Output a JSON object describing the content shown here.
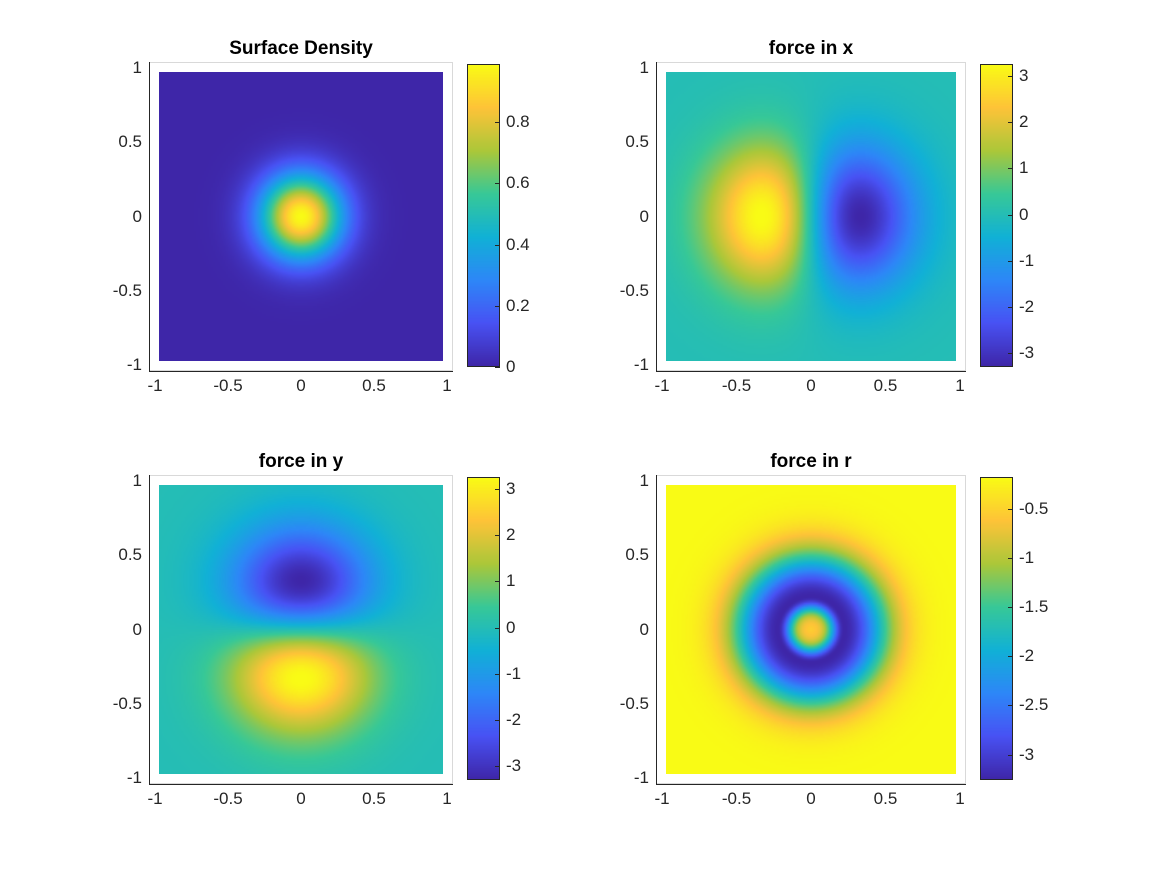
{
  "chart_data": [
    {
      "type": "heatmap",
      "title": "Surface Density",
      "field": "density",
      "xlim": [
        -1,
        1
      ],
      "ylim": [
        -1,
        1
      ],
      "xticks": [
        "-1",
        "-0.5",
        "0",
        "0.5",
        "1"
      ],
      "yticks": [
        "-1",
        "-0.5",
        "0",
        "0.5",
        "1"
      ],
      "clim": [
        0,
        0.99
      ],
      "cticks": [
        0,
        0.2,
        0.4,
        0.6,
        0.8
      ],
      "cticklabels": [
        "0",
        "0.2",
        "0.4",
        "0.6",
        "0.8"
      ]
    },
    {
      "type": "heatmap",
      "title": "force in x",
      "field": "force_x",
      "xlim": [
        -1,
        1
      ],
      "ylim": [
        -1,
        1
      ],
      "xticks": [
        "-1",
        "-0.5",
        "0",
        "0.5",
        "1"
      ],
      "yticks": [
        "-1",
        "-0.5",
        "0",
        "0.5",
        "1"
      ],
      "clim": [
        -3.3,
        3.26
      ],
      "cticks": [
        -3,
        -2,
        -1,
        0,
        1,
        2,
        3
      ],
      "cticklabels": [
        "-3",
        "-2",
        "-1",
        "0",
        "1",
        "2",
        "3"
      ]
    },
    {
      "type": "heatmap",
      "title": "force in y",
      "field": "force_y",
      "xlim": [
        -1,
        1
      ],
      "ylim": [
        -1,
        1
      ],
      "xticks": [
        "-1",
        "-0.5",
        "0",
        "0.5",
        "1"
      ],
      "yticks": [
        "-1",
        "-0.5",
        "0",
        "0.5",
        "1"
      ],
      "clim": [
        -3.3,
        3.26
      ],
      "cticks": [
        -3,
        -2,
        -1,
        0,
        1,
        2,
        3
      ],
      "cticklabels": [
        "-3",
        "-2",
        "-1",
        "0",
        "1",
        "2",
        "3"
      ]
    },
    {
      "type": "heatmap",
      "title": "force in r",
      "field": "force_r",
      "xlim": [
        -1,
        1
      ],
      "ylim": [
        -1,
        1
      ],
      "xticks": [
        "-1",
        "-0.5",
        "0",
        "0.5",
        "1"
      ],
      "yticks": [
        "-1",
        "-0.5",
        "0",
        "0.5",
        "1"
      ],
      "clim": [
        -3.26,
        -0.17
      ],
      "cticks": [
        -3,
        -2.5,
        -2,
        -1.5,
        -1,
        -0.5
      ],
      "cticklabels": [
        "-3",
        "-2.5",
        "-2",
        "-1.5",
        "-1",
        "-0.5"
      ]
    }
  ],
  "colormap": [
    "#3e26a8",
    "#4852f4",
    "#2d87f7",
    "#11b1d6",
    "#37c897",
    "#abc739",
    "#fec338",
    "#f9fb15"
  ]
}
